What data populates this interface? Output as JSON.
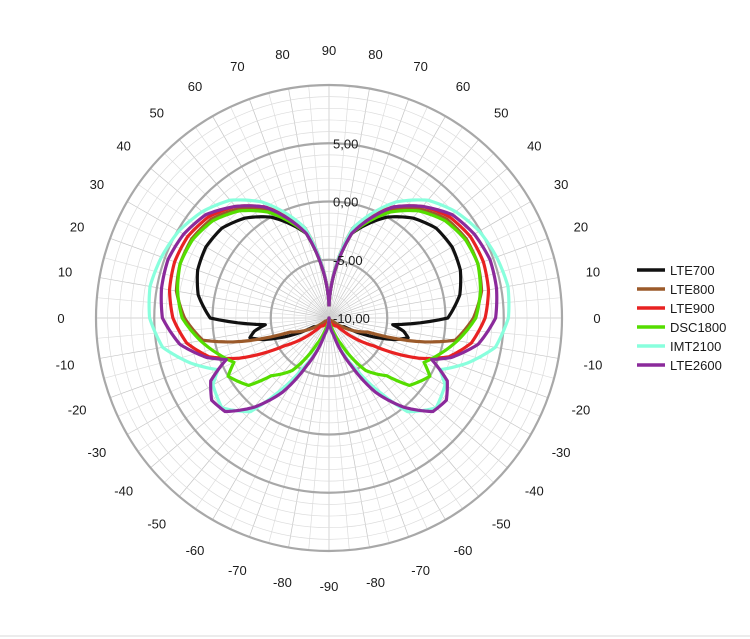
{
  "chart_data": {
    "type": "polar-line",
    "angle_unit": "degrees",
    "angle_labels": [
      "90",
      "80",
      "70",
      "60",
      "50",
      "40",
      "30",
      "20",
      "10",
      "0",
      "-10",
      "-20",
      "-30",
      "-40",
      "-50",
      "-60",
      "-70",
      "-80",
      "-90",
      "-80",
      "-70",
      "-60",
      "-50",
      "-40",
      "-30",
      "-20",
      "-10",
      "0",
      "10",
      "20",
      "30",
      "40",
      "50",
      "60",
      "70",
      "80"
    ],
    "radial_ticks": [
      "5,00",
      "0,00",
      "-5,00",
      "-10,00"
    ],
    "r_range": [
      -10,
      10
    ],
    "grid": true,
    "legend_position": "right",
    "series": [
      {
        "name": "LTE700",
        "color": "#111111",
        "points": [
          [
            90,
            -9.0
          ],
          [
            75,
            -2.5
          ],
          [
            60,
            0.0
          ],
          [
            50,
            1.2
          ],
          [
            40,
            2.0
          ],
          [
            30,
            2.2
          ],
          [
            20,
            2.0
          ],
          [
            10,
            1.4
          ],
          [
            0,
            0.2
          ],
          [
            -6,
            -4.5
          ],
          [
            -10,
            -3.5
          ],
          [
            -14,
            -3.0
          ],
          [
            -18,
            -4.0
          ],
          [
            -30,
            -8.5
          ],
          [
            -60,
            -9.8
          ],
          [
            -90,
            -10
          ]
        ]
      },
      {
        "name": "LTE800",
        "color": "#9b5a2a",
        "points": [
          [
            90,
            -9.0
          ],
          [
            75,
            -2.0
          ],
          [
            60,
            0.8
          ],
          [
            50,
            2.2
          ],
          [
            40,
            3.2
          ],
          [
            30,
            3.6
          ],
          [
            20,
            3.6
          ],
          [
            10,
            3.3
          ],
          [
            0,
            2.4
          ],
          [
            -10,
            1.0
          ],
          [
            -14,
            -1.5
          ],
          [
            -16,
            -3.0
          ],
          [
            -20,
            -6.5
          ],
          [
            -40,
            -9.6
          ],
          [
            -90,
            -10
          ]
        ]
      },
      {
        "name": "LTE900",
        "color": "#e82222",
        "points": [
          [
            90,
            -9.0
          ],
          [
            75,
            -2.0
          ],
          [
            60,
            1.0
          ],
          [
            50,
            2.5
          ],
          [
            40,
            3.5
          ],
          [
            30,
            4.0
          ],
          [
            20,
            4.1
          ],
          [
            10,
            3.9
          ],
          [
            0,
            3.4
          ],
          [
            -10,
            2.4
          ],
          [
            -18,
            0.8
          ],
          [
            -24,
            -1.5
          ],
          [
            -32,
            -5.5
          ],
          [
            -45,
            -9.0
          ],
          [
            -90,
            -10
          ]
        ]
      },
      {
        "name": "DSC1800",
        "color": "#55dd00",
        "points": [
          [
            90,
            -9.0
          ],
          [
            75,
            -2.5
          ],
          [
            60,
            0.5
          ],
          [
            50,
            2.0
          ],
          [
            40,
            3.0
          ],
          [
            30,
            3.5
          ],
          [
            20,
            3.6
          ],
          [
            10,
            3.2
          ],
          [
            0,
            2.6
          ],
          [
            -10,
            1.2
          ],
          [
            -18,
            0.0
          ],
          [
            -25,
            -1.0
          ],
          [
            -30,
            0.0
          ],
          [
            -40,
            -1.0
          ],
          [
            -45,
            -3.0
          ],
          [
            -55,
            -4.5
          ],
          [
            -65,
            -7.5
          ],
          [
            -75,
            -9.2
          ],
          [
            -90,
            -10
          ]
        ]
      },
      {
        "name": "IMT2100",
        "color": "#88ffdd",
        "points": [
          [
            90,
            -9.0
          ],
          [
            75,
            -2.0
          ],
          [
            60,
            1.5
          ],
          [
            50,
            3.2
          ],
          [
            40,
            4.2
          ],
          [
            30,
            4.9
          ],
          [
            20,
            5.3
          ],
          [
            10,
            5.6
          ],
          [
            0,
            5.4
          ],
          [
            -10,
            4.5
          ],
          [
            -18,
            2.5
          ],
          [
            -25,
            0.5
          ],
          [
            -30,
            1.5
          ],
          [
            -40,
            2.0
          ],
          [
            -50,
            0.5
          ],
          [
            -55,
            -2.0
          ],
          [
            -62,
            -5.0
          ],
          [
            -75,
            -8.5
          ],
          [
            -90,
            -10
          ]
        ]
      },
      {
        "name": "LTE2600",
        "color": "#8b2a9b",
        "points": [
          [
            90,
            -9.0
          ],
          [
            75,
            -2.5
          ],
          [
            60,
            1.0
          ],
          [
            50,
            2.5
          ],
          [
            40,
            3.8
          ],
          [
            30,
            4.4
          ],
          [
            20,
            4.7
          ],
          [
            10,
            4.6
          ],
          [
            0,
            4.3
          ],
          [
            -10,
            3.0
          ],
          [
            -18,
            1.0
          ],
          [
            -22,
            -0.5
          ],
          [
            -28,
            1.5
          ],
          [
            -35,
            2.3
          ],
          [
            -42,
            2.0
          ],
          [
            -50,
            0.0
          ],
          [
            -58,
            -2.5
          ],
          [
            -65,
            -5.5
          ],
          [
            -75,
            -8.5
          ],
          [
            -90,
            -10
          ]
        ]
      }
    ]
  }
}
